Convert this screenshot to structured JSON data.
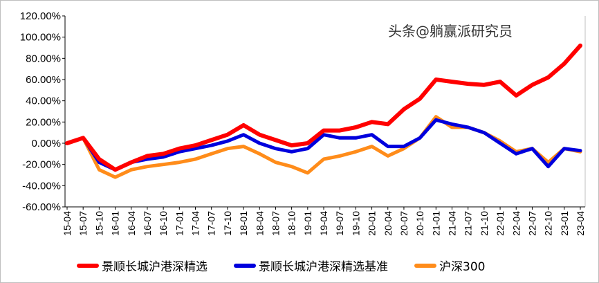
{
  "chart_data": {
    "type": "line",
    "title": "",
    "xlabel": "",
    "ylabel": "",
    "ylim": [
      -60,
      120
    ],
    "yticks": [
      -60,
      -40,
      -20,
      0,
      20,
      40,
      60,
      80,
      100,
      120
    ],
    "ytick_labels": [
      "-60.00%",
      "-40.00%",
      "-20.00%",
      "0.00%",
      "20.00%",
      "40.00%",
      "60.00%",
      "80.00%",
      "100.00%",
      "120.00%"
    ],
    "grid": false,
    "legend_position": "bottom",
    "categories": [
      "15-04",
      "15-07",
      "15-10",
      "16-01",
      "16-04",
      "16-07",
      "16-10",
      "17-01",
      "17-04",
      "17-07",
      "17-10",
      "18-01",
      "18-04",
      "18-07",
      "18-10",
      "19-01",
      "19-04",
      "19-07",
      "19-10",
      "20-01",
      "20-04",
      "20-07",
      "20-10",
      "21-01",
      "21-04",
      "21-07",
      "21-10",
      "22-01",
      "22-04",
      "22-07",
      "22-10",
      "23-01",
      "23-04"
    ],
    "series": [
      {
        "name": "景顺长城沪港深精选",
        "color": "#ff0000",
        "values": [
          0,
          5,
          -15,
          -25,
          -18,
          -12,
          -10,
          -5,
          -2,
          3,
          8,
          17,
          8,
          3,
          -2,
          0,
          12,
          12,
          15,
          20,
          18,
          32,
          42,
          60,
          58,
          56,
          55,
          58,
          45,
          55,
          62,
          75,
          92
        ]
      },
      {
        "name": "景顺长城沪港深精选基准",
        "color": "#0000dd",
        "values": [
          0,
          5,
          -18,
          -25,
          -18,
          -15,
          -13,
          -8,
          -5,
          -2,
          2,
          8,
          0,
          -5,
          -8,
          -5,
          8,
          5,
          5,
          8,
          -3,
          -3,
          5,
          22,
          18,
          15,
          10,
          0,
          -10,
          -5,
          -22,
          -5,
          -7
        ]
      },
      {
        "name": "沪深300",
        "color": "#ff8c1a",
        "values": [
          0,
          5,
          -25,
          -32,
          -25,
          -22,
          -20,
          -18,
          -15,
          -10,
          -5,
          -3,
          -10,
          -18,
          -22,
          -28,
          -15,
          -12,
          -8,
          -3,
          -12,
          -5,
          5,
          25,
          15,
          15,
          10,
          2,
          -8,
          -5,
          -18,
          -5,
          -8
        ]
      }
    ]
  },
  "watermark": "头条@躺赢派研究员"
}
